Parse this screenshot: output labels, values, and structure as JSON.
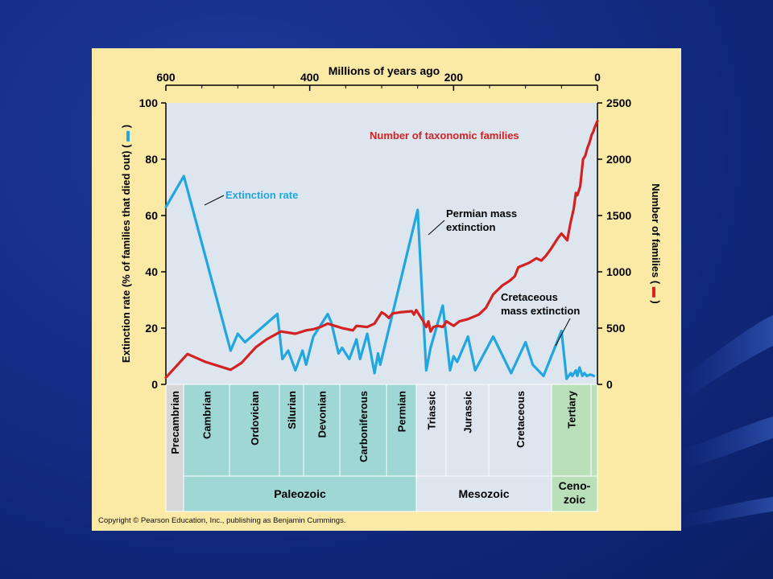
{
  "slide": {
    "colors": {
      "background": "#142d86",
      "panel": "#fbe9a6",
      "plot": "#dde6ef"
    }
  },
  "copyright": "Copyright © Pearson Education, Inc., publishing as Benjamin Cummings.",
  "chart_data": {
    "type": "line",
    "title": "Millions of years ago",
    "xlabel": "Millions of years ago",
    "x_ticks": [
      "600",
      "400",
      "200",
      "0"
    ],
    "xlim": [
      600,
      0
    ],
    "y_left": {
      "label": "Extinction rate (% of families that died out) (",
      "label_close": ")",
      "ticks": [
        "100",
        "80",
        "60",
        "40",
        "20",
        "0"
      ],
      "range": [
        0,
        100
      ]
    },
    "y_right": {
      "label": "Number of families (",
      "label_close": ")",
      "ticks": [
        "2500",
        "2000",
        "1500",
        "1000",
        "500",
        "0"
      ],
      "range": [
        0,
        2500
      ]
    },
    "series": [
      {
        "name": "Extinction rate",
        "axis": "left",
        "color": "#22a6df",
        "points": [
          [
            600,
            63
          ],
          [
            575,
            74
          ],
          [
            510,
            12
          ],
          [
            500,
            18
          ],
          [
            490,
            15
          ],
          [
            445,
            25
          ],
          [
            438,
            9
          ],
          [
            430,
            12
          ],
          [
            420,
            5
          ],
          [
            410,
            12
          ],
          [
            405,
            7
          ],
          [
            395,
            17
          ],
          [
            385,
            21
          ],
          [
            375,
            25
          ],
          [
            370,
            22
          ],
          [
            360,
            11
          ],
          [
            355,
            13
          ],
          [
            345,
            9
          ],
          [
            335,
            16
          ],
          [
            330,
            9
          ],
          [
            320,
            18
          ],
          [
            310,
            4
          ],
          [
            305,
            11
          ],
          [
            302,
            7
          ],
          [
            250,
            62
          ],
          [
            240,
            14
          ],
          [
            238,
            5
          ],
          [
            232,
            13
          ],
          [
            215,
            28
          ],
          [
            205,
            5
          ],
          [
            200,
            10
          ],
          [
            195,
            8
          ],
          [
            180,
            17
          ],
          [
            170,
            5
          ],
          [
            145,
            17
          ],
          [
            120,
            4
          ],
          [
            100,
            15
          ],
          [
            90,
            7
          ],
          [
            75,
            3
          ],
          [
            50,
            19
          ],
          [
            45,
            7
          ],
          [
            43,
            2
          ],
          [
            37,
            4
          ],
          [
            35,
            3
          ],
          [
            30,
            5
          ],
          [
            28,
            3
          ],
          [
            25,
            6
          ],
          [
            21,
            3
          ],
          [
            18,
            4
          ],
          [
            15,
            3
          ],
          [
            10,
            3.5
          ],
          [
            5,
            3
          ]
        ]
      },
      {
        "name": "Number of taxonomic families",
        "axis": "right",
        "color": "#d32222",
        "points": [
          [
            600,
            60
          ],
          [
            570,
            270
          ],
          [
            545,
            200
          ],
          [
            510,
            130
          ],
          [
            495,
            190
          ],
          [
            475,
            330
          ],
          [
            460,
            400
          ],
          [
            440,
            470
          ],
          [
            420,
            450
          ],
          [
            405,
            480
          ],
          [
            395,
            490
          ],
          [
            385,
            510
          ],
          [
            375,
            540
          ],
          [
            365,
            520
          ],
          [
            355,
            500
          ],
          [
            340,
            480
          ],
          [
            335,
            520
          ],
          [
            320,
            510
          ],
          [
            310,
            540
          ],
          [
            300,
            640
          ],
          [
            295,
            620
          ],
          [
            290,
            590
          ],
          [
            285,
            630
          ],
          [
            275,
            640
          ],
          [
            258,
            650
          ],
          [
            255,
            620
          ],
          [
            252,
            660
          ],
          [
            248,
            620
          ],
          [
            242,
            560
          ],
          [
            240,
            530
          ],
          [
            238,
            510
          ],
          [
            235,
            560
          ],
          [
            232,
            470
          ],
          [
            228,
            510
          ],
          [
            222,
            520
          ],
          [
            215,
            510
          ],
          [
            210,
            560
          ],
          [
            205,
            540
          ],
          [
            200,
            520
          ],
          [
            192,
            560
          ],
          [
            180,
            580
          ],
          [
            165,
            620
          ],
          [
            155,
            680
          ],
          [
            145,
            800
          ],
          [
            132,
            880
          ],
          [
            122,
            920
          ],
          [
            115,
            960
          ],
          [
            110,
            1040
          ],
          [
            95,
            1080
          ],
          [
            85,
            1120
          ],
          [
            78,
            1100
          ],
          [
            72,
            1140
          ],
          [
            65,
            1200
          ],
          [
            55,
            1300
          ],
          [
            50,
            1340
          ],
          [
            42,
            1280
          ],
          [
            38,
            1420
          ],
          [
            33,
            1560
          ],
          [
            30,
            1700
          ],
          [
            28,
            1680
          ],
          [
            26,
            1720
          ],
          [
            24,
            1760
          ],
          [
            20,
            2000
          ],
          [
            17,
            2030
          ],
          [
            14,
            2100
          ],
          [
            11,
            2150
          ],
          [
            8,
            2220
          ],
          [
            6,
            2240
          ],
          [
            4,
            2280
          ],
          [
            2,
            2310
          ],
          [
            0,
            2340
          ]
        ]
      }
    ],
    "annotations": [
      "Number of taxonomic families",
      "Extinction rate",
      "Permian mass",
      "extinction",
      "Cretaceous",
      "mass extinction"
    ],
    "geologic_periods": [
      {
        "name": "Precambrian",
        "color": "#d7d7d7"
      },
      {
        "name": "Cambrian",
        "color": "#9ed7d3"
      },
      {
        "name": "Ordovician",
        "color": "#9ed7d3"
      },
      {
        "name": "Silurian",
        "color": "#9ed7d3"
      },
      {
        "name": "Devonian",
        "color": "#9ed7d3"
      },
      {
        "name": "Carboniferous",
        "color": "#9ed7d3"
      },
      {
        "name": "Permian",
        "color": "#9ed7d3"
      },
      {
        "name": "Triassic",
        "color": "#dde6ef"
      },
      {
        "name": "Jurassic",
        "color": "#dde6ef"
      },
      {
        "name": "Cretaceous",
        "color": "#dde6ef"
      },
      {
        "name": "Tertiary",
        "color": "#b9e0b9"
      },
      {
        "name": "",
        "color": "#b9e0b9"
      }
    ],
    "eras": [
      {
        "lines": [
          "Paleozoic"
        ],
        "color": "#9ed7d3"
      },
      {
        "lines": [
          "Mesozoic"
        ],
        "color": "#dde6ef"
      },
      {
        "lines": [
          "Ceno-",
          "zoic"
        ],
        "color": "#b9e0b9"
      }
    ]
  }
}
